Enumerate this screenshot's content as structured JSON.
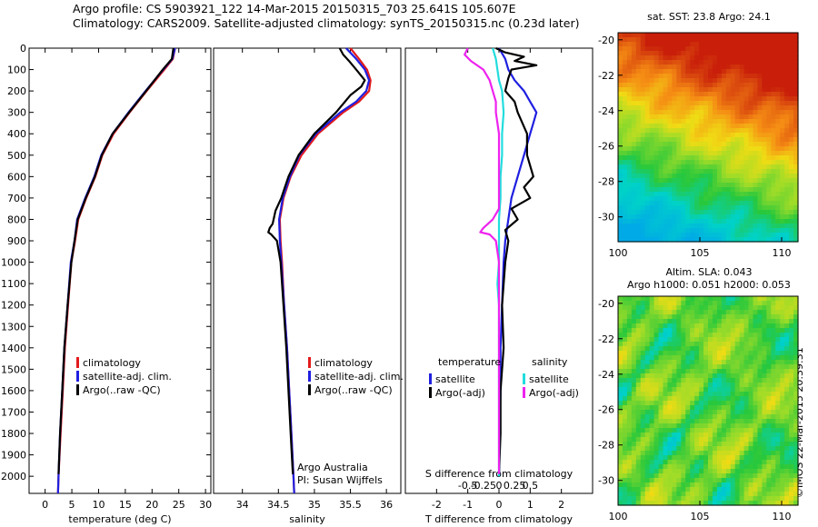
{
  "header": {
    "line1": "Argo profile: CS 5903921_122 14-Mar-2015 20150315_703 25.641S 105.607E",
    "line2": "Climatology: CARS2009. Satellite-adjusted climatology: synTS_20150315.nc (0.23d later)"
  },
  "stamp": "©IMOS 22-Mar-2015 20:39:31",
  "colors": {
    "clim": "#e31a1c",
    "sat": "#1f1fe0",
    "argo": "#000000",
    "sal_sat": "#22dddd",
    "sal_argo": "#ee22ee"
  },
  "chart_data": [
    {
      "type": "line",
      "xlabel": "temperature (deg C)",
      "ylabel": "",
      "xlim": [
        -3,
        31
      ],
      "ylim": [
        2080,
        0
      ],
      "xticks": [
        0,
        5,
        10,
        15,
        20,
        25,
        30
      ],
      "yticks": [
        0,
        100,
        200,
        300,
        400,
        500,
        600,
        700,
        800,
        900,
        1000,
        1100,
        1200,
        1300,
        1400,
        1500,
        1600,
        1700,
        1800,
        1900,
        2000
      ],
      "legend": [
        "climatology",
        "satellite-adj. clim.",
        "Argo(..raw -QC)"
      ],
      "series": [
        {
          "name": "climatology",
          "depth": [
            0,
            50,
            100,
            200,
            300,
            400,
            500,
            600,
            700,
            800,
            900,
            1000,
            1200,
            1400,
            1600,
            1800,
            2000,
            2080
          ],
          "value": [
            24.3,
            23.9,
            22.3,
            19.0,
            15.8,
            12.8,
            10.7,
            9.4,
            7.7,
            6.2,
            5.6,
            4.9,
            4.3,
            3.7,
            3.3,
            2.9,
            2.5,
            2.4
          ]
        },
        {
          "name": "satellite-adj. clim.",
          "depth": [
            0,
            50,
            100,
            200,
            300,
            400,
            500,
            600,
            700,
            800,
            900,
            1000,
            1200,
            1400,
            1600,
            1800,
            2000,
            2080
          ],
          "value": [
            24.3,
            23.8,
            22.1,
            18.8,
            15.6,
            12.6,
            10.5,
            9.2,
            7.5,
            6.0,
            5.5,
            4.8,
            4.2,
            3.6,
            3.2,
            2.8,
            2.5,
            2.4
          ]
        },
        {
          "name": "Argo(..raw -QC)",
          "depth": [
            0,
            50,
            100,
            200,
            300,
            400,
            500,
            600,
            700,
            800,
            900,
            1000,
            1200,
            1400,
            1600,
            1800,
            1990
          ],
          "value": [
            24.0,
            23.7,
            22.0,
            18.9,
            15.7,
            12.6,
            10.6,
            9.3,
            7.6,
            6.1,
            5.5,
            4.9,
            4.2,
            3.6,
            3.2,
            2.8,
            2.5
          ]
        }
      ]
    },
    {
      "type": "line",
      "xlabel": "salinity",
      "xlim": [
        33.6,
        36.2
      ],
      "ylim": [
        2080,
        0
      ],
      "xticks": [
        34,
        34.5,
        35,
        35.5,
        36
      ],
      "legend": [
        "climatology",
        "satellite-adj. clim.",
        "Argo(..raw -QC)"
      ],
      "annotations": [
        "Argo Australia",
        "PI: Susan Wijffels"
      ],
      "series": [
        {
          "name": "climatology",
          "depth": [
            0,
            50,
            100,
            150,
            200,
            250,
            300,
            400,
            500,
            600,
            700,
            800,
            900,
            1000,
            1200,
            1400,
            1600,
            1800,
            2000,
            2080
          ],
          "value": [
            35.5,
            35.62,
            35.73,
            35.78,
            35.76,
            35.62,
            35.4,
            35.05,
            34.82,
            34.67,
            34.57,
            34.52,
            34.53,
            34.55,
            34.58,
            34.62,
            34.65,
            34.68,
            34.71,
            34.72
          ]
        },
        {
          "name": "satellite-adj. clim.",
          "depth": [
            0,
            50,
            100,
            150,
            200,
            250,
            300,
            400,
            500,
            600,
            700,
            800,
            900,
            1000,
            1200,
            1400,
            1600,
            1800,
            2000,
            2080
          ],
          "value": [
            35.44,
            35.58,
            35.7,
            35.76,
            35.72,
            35.58,
            35.36,
            35.02,
            34.79,
            34.66,
            34.56,
            34.51,
            34.52,
            34.54,
            34.58,
            34.62,
            34.65,
            34.68,
            34.71,
            34.72
          ]
        },
        {
          "name": "Argo(..raw -QC)",
          "depth": [
            0,
            30,
            60,
            100,
            150,
            180,
            220,
            300,
            400,
            500,
            600,
            700,
            760,
            820,
            840,
            860,
            870,
            900,
            1000,
            1200,
            1400,
            1600,
            1800,
            1990
          ],
          "value": [
            35.35,
            35.4,
            35.48,
            35.58,
            35.7,
            35.65,
            35.5,
            35.3,
            35.0,
            34.78,
            34.64,
            34.54,
            34.46,
            34.42,
            34.38,
            34.36,
            34.4,
            34.48,
            34.53,
            34.57,
            34.61,
            34.64,
            34.67,
            34.7
          ]
        }
      ]
    },
    {
      "type": "line",
      "xlabel": "T difference from climatology",
      "top_label": "S difference from climatology",
      "xlim": [
        -3,
        3
      ],
      "ylim": [
        2080,
        0
      ],
      "xticks": [
        -2,
        -1,
        0,
        1,
        2
      ],
      "top_xticks": [
        {
          "pos": -1,
          "label": "-0.5"
        },
        {
          "pos": -0.5,
          "label": "-0.25"
        },
        {
          "pos": 0,
          "label": "0"
        },
        {
          "pos": 0.5,
          "label": "0.25"
        },
        {
          "pos": 1,
          "label": "0.5"
        }
      ],
      "legend_titles": [
        "temperature",
        "salinity"
      ],
      "legend": [
        "satellite",
        "Argo(-adj)",
        "satellite",
        "Argo(-adj)"
      ],
      "series": [
        {
          "name": "satellite",
          "depth": [
            0,
            50,
            100,
            150,
            200,
            250,
            300,
            350,
            400,
            500,
            600,
            700,
            800,
            900,
            1000,
            1200,
            1400,
            1600,
            1800,
            2000
          ],
          "value": [
            0.0,
            0.2,
            0.3,
            0.5,
            0.8,
            1.0,
            1.2,
            1.1,
            1.0,
            0.8,
            0.6,
            0.4,
            0.3,
            0.2,
            0.15,
            0.1,
            0.05,
            0.05,
            0.02,
            0.0
          ]
        },
        {
          "name": "Argo(-adj)",
          "depth": [
            0,
            20,
            40,
            60,
            80,
            100,
            140,
            200,
            250,
            300,
            400,
            500,
            600,
            650,
            700,
            750,
            800,
            850,
            900,
            1000,
            1200,
            1400,
            1600,
            1800,
            1990
          ],
          "value": [
            -0.1,
            0.2,
            0.8,
            0.5,
            1.2,
            0.4,
            0.3,
            0.2,
            0.5,
            0.6,
            0.9,
            0.9,
            1.1,
            0.8,
            1.0,
            0.4,
            0.6,
            0.2,
            0.3,
            0.2,
            0.1,
            0.15,
            0.05,
            0.05,
            0.0
          ]
        },
        {
          "name": "satellite",
          "depth": [
            0,
            50,
            100,
            150,
            200,
            300,
            400,
            500,
            600,
            700,
            800,
            900,
            1000,
            1100,
            1200,
            1400,
            1600,
            1800,
            2000
          ],
          "value": [
            -0.2,
            -0.1,
            -0.05,
            0.0,
            0.1,
            0.15,
            0.1,
            0.1,
            0.05,
            0.05,
            0.0,
            0.0,
            0.0,
            -0.05,
            0.0,
            0.0,
            0.0,
            0.0,
            0.0
          ]
        },
        {
          "name": "Argo(-adj)",
          "depth": [
            0,
            30,
            60,
            100,
            150,
            200,
            250,
            300,
            400,
            500,
            600,
            700,
            750,
            800,
            840,
            860,
            870,
            900,
            1000,
            1200,
            1400,
            1600,
            1800,
            1990
          ],
          "value": [
            -1.0,
            -1.1,
            -0.9,
            -0.5,
            -0.3,
            -0.2,
            -0.1,
            -0.1,
            0.0,
            0.0,
            0.0,
            0.0,
            0.0,
            -0.2,
            -0.5,
            -0.6,
            -0.3,
            -0.1,
            0.0,
            0.0,
            0.0,
            0.0,
            0.0,
            0.0
          ]
        }
      ]
    },
    {
      "type": "heatmap",
      "title": "sat. SST: 23.8  Argo: 24.1",
      "xlim": [
        100,
        111
      ],
      "ylim": [
        -31.4,
        -19.6
      ],
      "xticks": [
        100,
        105,
        110
      ],
      "yticks": [
        -20,
        -22,
        -24,
        -26,
        -28,
        -30
      ]
    },
    {
      "type": "heatmap",
      "title": "Altim. SLA: 0.043",
      "subtitle": "Argo h1000: 0.051 h2000: 0.053",
      "xlim": [
        100,
        111
      ],
      "ylim": [
        -31.4,
        -19.6
      ],
      "xticks": [
        100,
        105,
        110
      ],
      "yticks": [
        -20,
        -22,
        -24,
        -26,
        -28,
        -30
      ]
    }
  ]
}
